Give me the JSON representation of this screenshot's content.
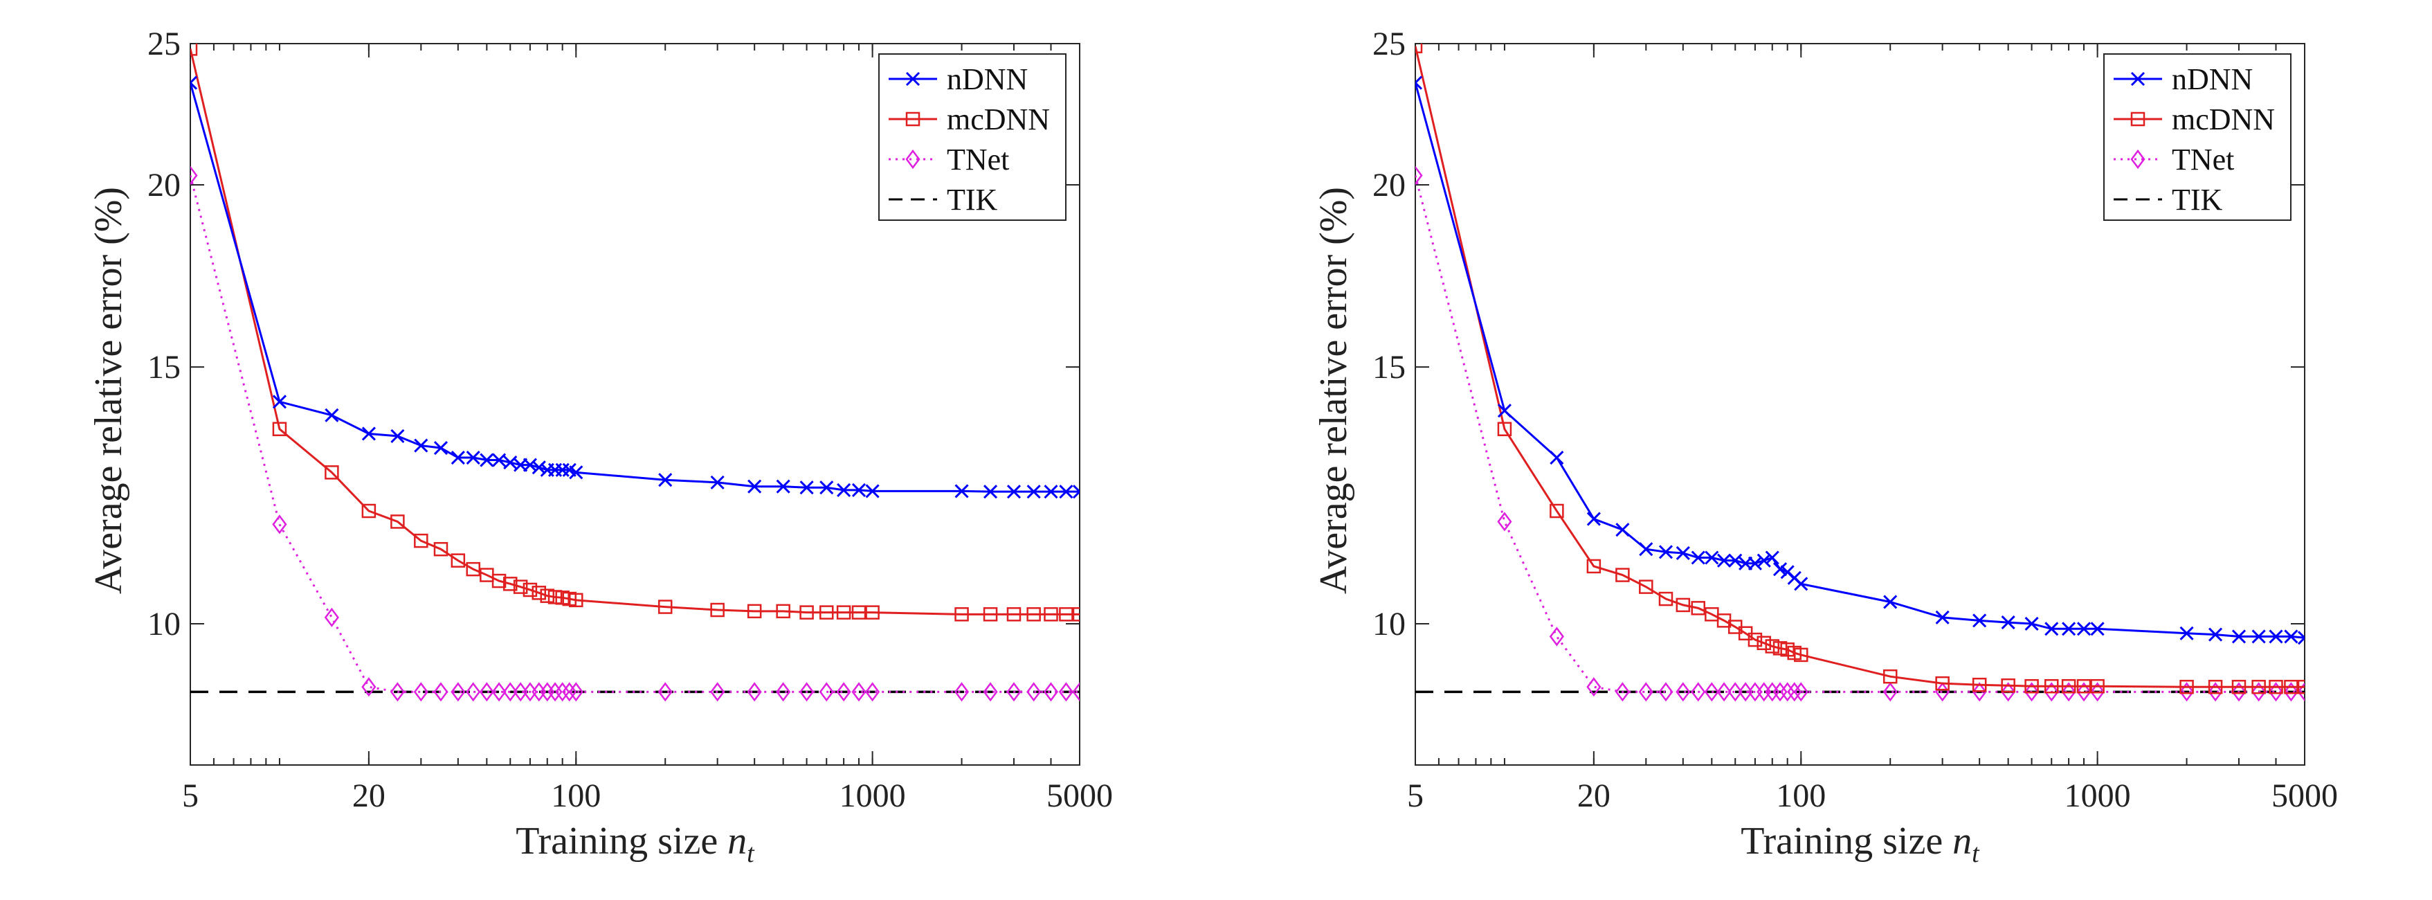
{
  "chart_data": [
    {
      "type": "line",
      "xlabel": "Training size",
      "xlabel_var": "n",
      "xlabel_sub": "t",
      "ylabel": "Average relative error (%)",
      "xscale": "log",
      "yscale": "log",
      "xlim": [
        5,
        5000
      ],
      "ylim": [
        8,
        25
      ],
      "xticks": [
        "5",
        "20",
        "100",
        "1000",
        "5000"
      ],
      "yticks": [
        "10",
        "15",
        "20",
        "25"
      ],
      "legend_position": "top-right",
      "series": [
        {
          "name": "nDNN",
          "color": "#0000ff",
          "marker": "x",
          "line": "solid",
          "x": [
            5,
            10,
            15,
            20,
            25,
            30,
            35,
            40,
            45,
            50,
            55,
            60,
            65,
            70,
            75,
            80,
            85,
            90,
            95,
            100,
            200,
            300,
            400,
            500,
            600,
            700,
            800,
            900,
            1000,
            2000,
            2500,
            3000,
            3500,
            4000,
            4500,
            5000
          ],
          "y": [
            23.5,
            14.2,
            13.9,
            13.5,
            13.45,
            13.25,
            13.2,
            13.0,
            13.0,
            12.95,
            12.95,
            12.9,
            12.85,
            12.85,
            12.8,
            12.75,
            12.75,
            12.75,
            12.75,
            12.7,
            12.55,
            12.5,
            12.42,
            12.42,
            12.4,
            12.4,
            12.35,
            12.35,
            12.33,
            12.33,
            12.32,
            12.32,
            12.32,
            12.32,
            12.32,
            12.32
          ]
        },
        {
          "name": "mcDNN",
          "color": "#e02020",
          "marker": "square",
          "line": "solid",
          "x": [
            5,
            10,
            15,
            20,
            25,
            30,
            35,
            40,
            45,
            50,
            55,
            60,
            65,
            70,
            75,
            80,
            85,
            90,
            95,
            100,
            200,
            300,
            400,
            500,
            600,
            700,
            800,
            900,
            1000,
            2000,
            2500,
            3000,
            3500,
            4000,
            4500,
            5000
          ],
          "y": [
            24.8,
            13.6,
            12.7,
            11.95,
            11.75,
            11.4,
            11.25,
            11.05,
            10.9,
            10.8,
            10.7,
            10.65,
            10.6,
            10.55,
            10.5,
            10.45,
            10.43,
            10.42,
            10.4,
            10.38,
            10.27,
            10.22,
            10.2,
            10.2,
            10.18,
            10.18,
            10.18,
            10.18,
            10.18,
            10.15,
            10.15,
            10.15,
            10.15,
            10.15,
            10.15,
            10.15
          ]
        },
        {
          "name": "TNet",
          "color": "#e020e0",
          "marker": "diamond",
          "line": "dotted",
          "x": [
            5,
            10,
            15,
            20,
            25,
            30,
            35,
            40,
            45,
            50,
            55,
            60,
            65,
            70,
            75,
            80,
            85,
            90,
            95,
            100,
            200,
            300,
            400,
            500,
            600,
            700,
            800,
            900,
            1000,
            2000,
            2500,
            3000,
            3500,
            4000,
            4500,
            5000
          ],
          "y": [
            20.3,
            11.7,
            10.1,
            9.05,
            8.98,
            8.98,
            8.98,
            8.98,
            8.98,
            8.98,
            8.98,
            8.98,
            8.98,
            8.98,
            8.98,
            8.98,
            8.98,
            8.98,
            8.98,
            8.98,
            8.98,
            8.98,
            8.98,
            8.98,
            8.98,
            8.98,
            8.98,
            8.98,
            8.98,
            8.98,
            8.98,
            8.98,
            8.98,
            8.98,
            8.98,
            8.98
          ]
        },
        {
          "name": "TIK",
          "color": "#000000",
          "marker": "none",
          "line": "dashed",
          "x": [
            5,
            5000
          ],
          "y": [
            8.98,
            8.98
          ]
        }
      ]
    },
    {
      "type": "line",
      "xlabel": "Training size",
      "xlabel_var": "n",
      "xlabel_sub": "t",
      "ylabel": "Average relative error (%)",
      "xscale": "log",
      "yscale": "log",
      "xlim": [
        5,
        5000
      ],
      "ylim": [
        8,
        25
      ],
      "xticks": [
        "5",
        "20",
        "100",
        "1000",
        "5000"
      ],
      "yticks": [
        "10",
        "15",
        "20",
        "25"
      ],
      "legend_position": "top-right",
      "series": [
        {
          "name": "nDNN",
          "color": "#0000ff",
          "marker": "x",
          "line": "solid",
          "x": [
            5,
            10,
            15,
            20,
            25,
            30,
            35,
            40,
            45,
            50,
            55,
            60,
            65,
            70,
            75,
            80,
            85,
            90,
            95,
            100,
            200,
            300,
            400,
            500,
            600,
            700,
            800,
            900,
            1000,
            2000,
            2500,
            3000,
            3500,
            4000,
            4500,
            5000
          ],
          "y": [
            23.5,
            14.0,
            13.0,
            11.8,
            11.6,
            11.25,
            11.2,
            11.18,
            11.1,
            11.1,
            11.05,
            11.05,
            11.0,
            11.0,
            11.05,
            11.1,
            10.9,
            10.85,
            10.75,
            10.65,
            10.35,
            10.1,
            10.05,
            10.02,
            10.0,
            9.92,
            9.92,
            9.92,
            9.92,
            9.85,
            9.83,
            9.8,
            9.8,
            9.8,
            9.8,
            9.78
          ]
        },
        {
          "name": "mcDNN",
          "color": "#e02020",
          "marker": "square",
          "line": "solid",
          "x": [
            5,
            10,
            15,
            20,
            25,
            30,
            35,
            40,
            45,
            50,
            55,
            60,
            65,
            70,
            75,
            80,
            85,
            90,
            95,
            100,
            200,
            300,
            400,
            500,
            600,
            700,
            800,
            900,
            1000,
            2000,
            2500,
            3000,
            3500,
            4000,
            4500,
            5000
          ],
          "y": [
            24.9,
            13.6,
            11.95,
            10.95,
            10.8,
            10.6,
            10.4,
            10.3,
            10.25,
            10.15,
            10.05,
            9.95,
            9.85,
            9.75,
            9.7,
            9.65,
            9.62,
            9.6,
            9.55,
            9.52,
            9.2,
            9.1,
            9.08,
            9.07,
            9.06,
            9.06,
            9.06,
            9.06,
            9.06,
            9.05,
            9.05,
            9.05,
            9.05,
            9.05,
            9.05,
            9.05
          ]
        },
        {
          "name": "TNet",
          "color": "#e020e0",
          "marker": "diamond",
          "line": "dotted",
          "x": [
            5,
            10,
            15,
            20,
            25,
            30,
            35,
            40,
            45,
            50,
            55,
            60,
            65,
            70,
            75,
            80,
            85,
            90,
            95,
            100,
            200,
            300,
            400,
            500,
            600,
            700,
            800,
            900,
            1000,
            2000,
            2500,
            3000,
            3500,
            4000,
            4500,
            5000
          ],
          "y": [
            20.3,
            11.75,
            9.8,
            9.05,
            8.98,
            8.98,
            8.98,
            8.98,
            8.98,
            8.98,
            8.98,
            8.98,
            8.98,
            8.98,
            8.98,
            8.98,
            8.98,
            8.98,
            8.98,
            8.98,
            8.98,
            8.98,
            8.98,
            8.98,
            8.98,
            8.98,
            8.98,
            8.98,
            8.98,
            8.98,
            8.98,
            8.98,
            8.98,
            8.98,
            8.98,
            8.98
          ]
        },
        {
          "name": "TIK",
          "color": "#000000",
          "marker": "none",
          "line": "dashed",
          "x": [
            5,
            5000
          ],
          "y": [
            8.98,
            8.98
          ]
        }
      ]
    }
  ]
}
